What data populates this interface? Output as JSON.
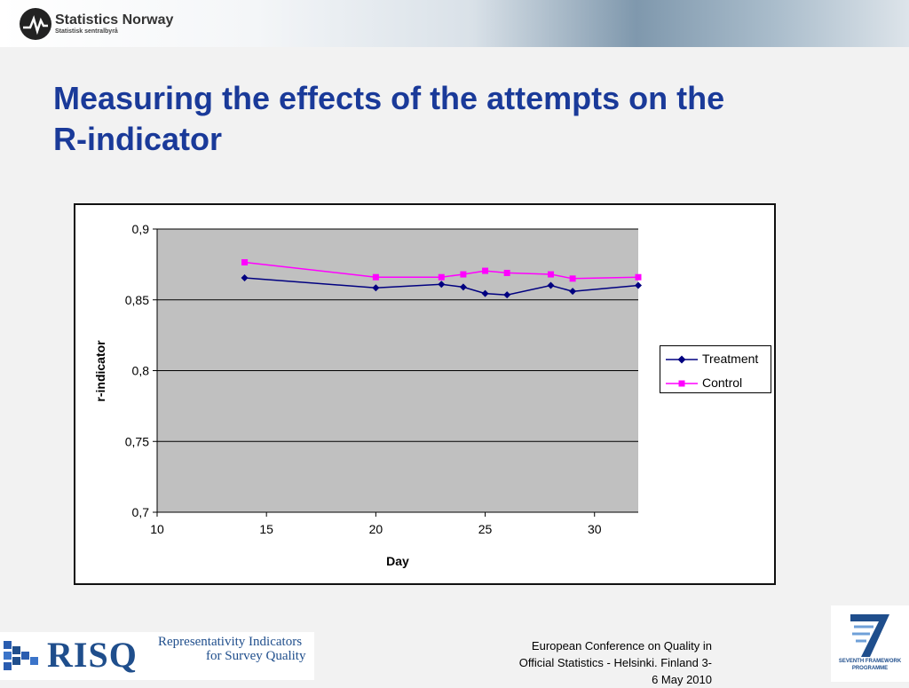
{
  "header": {
    "brand": "Statistics Norway",
    "brand_sub": "Statistisk sentralbyrå"
  },
  "slide": {
    "title_line1": "Measuring the effects of the attempts on the",
    "title_line2": "R-indicator"
  },
  "chart_data": {
    "type": "line",
    "title": "",
    "xlabel": "Day",
    "ylabel": "r-indicator",
    "xlim": [
      10,
      32
    ],
    "ylim": [
      0.7,
      0.9
    ],
    "x_ticks": [
      10,
      15,
      20,
      25,
      30
    ],
    "x_tick_labels": [
      "10",
      "15",
      "20",
      "25",
      "30"
    ],
    "y_ticks": [
      0.7,
      0.75,
      0.8,
      0.85,
      0.9
    ],
    "y_tick_labels": [
      "0,7",
      "0,75",
      "0,8",
      "0,85",
      "0,9"
    ],
    "grid": "horizontal major gridlines",
    "plot_background": "#c0c0c0",
    "legend_position": "right",
    "series": [
      {
        "name": "Treatment",
        "color": "#000080",
        "marker": "diamond",
        "x": [
          14,
          20,
          23,
          24,
          25,
          26,
          28,
          29,
          32
        ],
        "y": [
          0.8655,
          0.8585,
          0.861,
          0.859,
          0.8545,
          0.8535,
          0.8602,
          0.856,
          0.8602
        ]
      },
      {
        "name": "Control",
        "color": "#ff00ff",
        "marker": "square",
        "x": [
          14,
          20,
          23,
          24,
          25,
          26,
          28,
          29,
          32
        ],
        "y": [
          0.8765,
          0.866,
          0.866,
          0.868,
          0.8705,
          0.869,
          0.868,
          0.865,
          0.866
        ]
      }
    ]
  },
  "footer": {
    "conference_line1": "European Conference on Quality in",
    "conference_line2": "Official Statistics - Helsinki. Finland 3-",
    "conference_line3": "6 May 2010",
    "risq_name": "RISQ",
    "risq_tagline1": "Representativity Indicators",
    "risq_tagline2": "for Survey Quality",
    "fp7_line1": "SEVENTH FRAMEWORK",
    "fp7_line2": "PROGRAMME"
  }
}
